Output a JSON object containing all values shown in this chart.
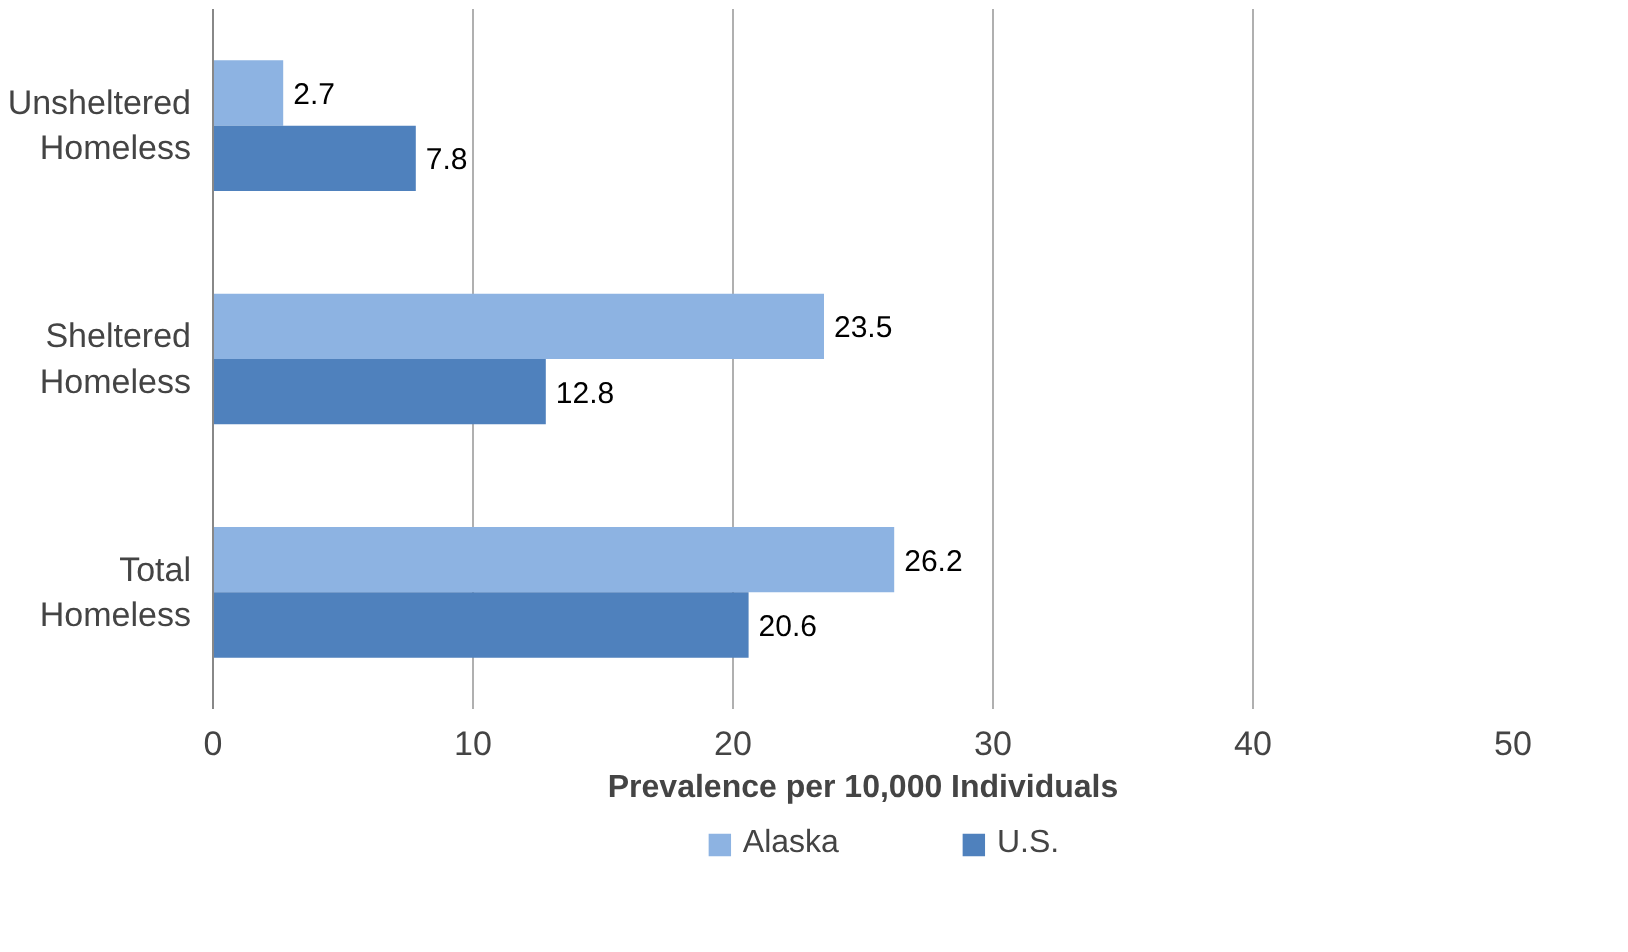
{
  "chart_data": {
    "type": "bar",
    "orientation": "horizontal",
    "xlabel": "Prevalence per 10,000 Individuals",
    "categories": [
      "Unsheltered Homeless",
      "Sheltered Homeless",
      "Total Homeless"
    ],
    "series": [
      {
        "name": "Alaska",
        "color": "#8db3e2",
        "values": [
          2.7,
          23.5,
          26.2
        ]
      },
      {
        "name": "U.S.",
        "color": "#4f81bd",
        "values": [
          7.8,
          12.8,
          20.6
        ]
      }
    ],
    "xlim": [
      0,
      50
    ],
    "xticks": [
      0,
      10,
      20,
      30,
      40,
      50
    ],
    "grid": "x",
    "legend": "bottom",
    "data_labels": true
  }
}
